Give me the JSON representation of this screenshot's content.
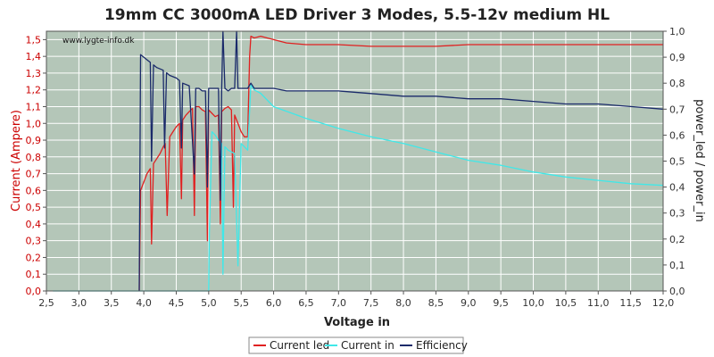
{
  "chart_data": {
    "type": "line",
    "title": "19mm CC 3000mA LED Driver 3 Modes, 5.5-12v medium HL",
    "xlabel": "Voltage in",
    "ylabel_left": "Current (Ampere)",
    "ylabel_right": "power_led / power_in",
    "watermark": "www.lygte-info.dk",
    "xlim": [
      2.5,
      12.0
    ],
    "ylim_left": [
      0.0,
      1.55
    ],
    "ylim_right": [
      0.0,
      1.0
    ],
    "x_ticks": [
      "2,5",
      "3,0",
      "3,5",
      "4,0",
      "4,5",
      "5,0",
      "5,5",
      "6,0",
      "6,5",
      "7,0",
      "7,5",
      "8,0",
      "8,5",
      "9,0",
      "9,5",
      "10,0",
      "10,5",
      "11,0",
      "11,5",
      "12,0"
    ],
    "y_left_ticks": [
      "0,0",
      "0,1",
      "0,2",
      "0,3",
      "0,4",
      "0,5",
      "0,6",
      "0,7",
      "0,8",
      "0,9",
      "1,0",
      "1,1",
      "1,2",
      "1,3",
      "1,4",
      "1,5"
    ],
    "y_right_ticks": [
      "0,0",
      "0,1",
      "0,2",
      "0,3",
      "0,4",
      "0,5",
      "0,6",
      "0,7",
      "0,8",
      "0,9",
      "1,0"
    ],
    "grid": true,
    "legend_position": "bottom-center",
    "series": [
      {
        "name": "Current led",
        "axis": "left",
        "color": "#e02020",
        "x": [
          3.93,
          3.95,
          4.0,
          4.05,
          4.1,
          4.12,
          4.15,
          4.2,
          4.25,
          4.3,
          4.33,
          4.36,
          4.4,
          4.45,
          4.5,
          4.55,
          4.58,
          4.6,
          4.65,
          4.7,
          4.75,
          4.78,
          4.8,
          4.85,
          4.9,
          4.95,
          4.98,
          5.0,
          5.05,
          5.1,
          5.15,
          5.18,
          5.2,
          5.25,
          5.3,
          5.35,
          5.38,
          5.4,
          5.45,
          5.5,
          5.55,
          5.6,
          5.63,
          5.65,
          5.7,
          5.8,
          6.0,
          6.2,
          6.5,
          7.0,
          7.5,
          8.0,
          8.5,
          9.0,
          9.5,
          10.0,
          10.5,
          11.0,
          11.5,
          12.0
        ],
        "values": [
          0.0,
          0.6,
          0.65,
          0.7,
          0.73,
          0.28,
          0.76,
          0.79,
          0.82,
          0.86,
          0.88,
          0.45,
          0.92,
          0.95,
          0.98,
          1.0,
          0.55,
          1.02,
          1.05,
          1.07,
          1.09,
          0.45,
          1.1,
          1.1,
          1.08,
          1.07,
          0.3,
          1.08,
          1.06,
          1.04,
          1.05,
          0.4,
          1.07,
          1.09,
          1.1,
          1.08,
          0.5,
          1.05,
          1.0,
          0.95,
          0.92,
          0.92,
          1.4,
          1.52,
          1.51,
          1.52,
          1.5,
          1.48,
          1.47,
          1.47,
          1.46,
          1.46,
          1.46,
          1.47,
          1.47,
          1.47,
          1.47,
          1.47,
          1.47,
          1.47
        ]
      },
      {
        "name": "Current in",
        "axis": "left",
        "color": "#40e8e8",
        "x": [
          2.6,
          3.0,
          3.5,
          3.93,
          4.6,
          4.8,
          4.9,
          4.95,
          5.0,
          5.01,
          5.05,
          5.1,
          5.15,
          5.2,
          5.22,
          5.25,
          5.3,
          5.4,
          5.45,
          5.5,
          5.55,
          5.6,
          5.65,
          5.7,
          5.8,
          6.0,
          6.5,
          7.0,
          7.5,
          8.0,
          8.5,
          9.0,
          9.5,
          10.0,
          10.5,
          11.0,
          11.5,
          12.0
        ],
        "values": [
          0.0,
          0.0,
          0.0,
          0.0,
          0.0,
          0.0,
          0.0,
          0.0,
          0.0,
          0.35,
          0.95,
          0.93,
          0.9,
          0.88,
          0.1,
          0.86,
          0.84,
          0.82,
          0.15,
          0.88,
          0.86,
          0.84,
          1.23,
          1.2,
          1.18,
          1.1,
          1.03,
          0.97,
          0.92,
          0.88,
          0.83,
          0.78,
          0.75,
          0.71,
          0.68,
          0.66,
          0.64,
          0.63
        ]
      },
      {
        "name": "Efficiency",
        "axis": "right",
        "color": "#1a2a6a",
        "x": [
          3.93,
          3.95,
          4.05,
          4.1,
          4.12,
          4.15,
          4.2,
          4.3,
          4.32,
          4.35,
          4.4,
          4.5,
          4.55,
          4.58,
          4.6,
          4.7,
          4.78,
          4.8,
          4.85,
          4.9,
          4.95,
          4.98,
          5.0,
          5.05,
          5.1,
          5.15,
          5.18,
          5.2,
          5.22,
          5.25,
          5.3,
          5.35,
          5.4,
          5.43,
          5.45,
          5.5,
          5.55,
          5.6,
          5.65,
          5.7,
          5.8,
          6.0,
          6.2,
          6.5,
          7.0,
          7.5,
          8.0,
          8.5,
          9.0,
          9.5,
          10.0,
          10.5,
          11.0,
          11.5,
          12.0
        ],
        "values": [
          0.0,
          0.91,
          0.89,
          0.88,
          0.5,
          0.87,
          0.86,
          0.85,
          0.55,
          0.84,
          0.83,
          0.82,
          0.81,
          0.55,
          0.8,
          0.79,
          0.45,
          0.78,
          0.78,
          0.77,
          0.77,
          0.4,
          0.78,
          0.78,
          0.78,
          0.78,
          0.35,
          0.78,
          1.0,
          0.78,
          0.77,
          0.78,
          0.78,
          1.0,
          0.78,
          0.78,
          0.78,
          0.78,
          0.8,
          0.78,
          0.78,
          0.78,
          0.77,
          0.77,
          0.77,
          0.76,
          0.75,
          0.75,
          0.74,
          0.74,
          0.73,
          0.72,
          0.72,
          0.71,
          0.7
        ]
      }
    ]
  }
}
